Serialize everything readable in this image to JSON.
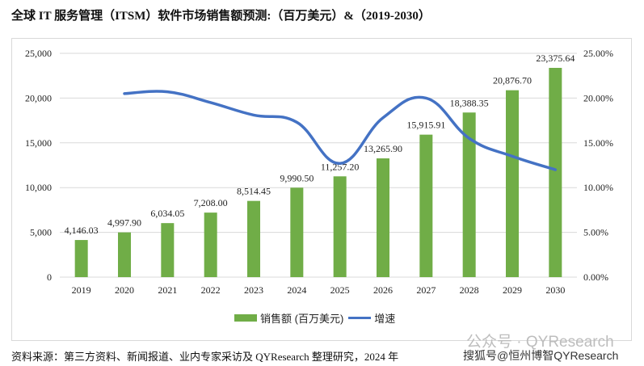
{
  "title": "全球 IT 服务管理（ITSM）软件市场销售额预测:（百万美元）&（2019-2030）",
  "source": "资料来源：第三方资料、新闻报道、业内专家采访及 QYResearch 整理研究，2024 年",
  "watermarks": [
    "公众号 · QYResearch",
    "搜狐号@恒州博智QYResearch"
  ],
  "chart_data": {
    "type": "bar+line",
    "categories": [
      "2019",
      "2020",
      "2021",
      "2022",
      "2023",
      "2024",
      "2025",
      "2026",
      "2027",
      "2028",
      "2029",
      "2030"
    ],
    "series": [
      {
        "name": "销售额 (百万美元)",
        "type": "bar",
        "axis": "left",
        "color": "#70ad47",
        "values": [
          4146.03,
          4997.9,
          6034.05,
          7208.0,
          8514.45,
          9990.5,
          11257.2,
          13265.9,
          15915.91,
          18388.35,
          20876.7,
          23375.64
        ],
        "labels": [
          "4,146.03",
          "4,997.90",
          "6,034.05",
          "7,208.00",
          "8,514.45",
          "9,990.50",
          "11,257.20",
          "13,265.90",
          "15,915.91",
          "18,388.35",
          "20,876.70",
          "23,375.64"
        ]
      },
      {
        "name": "增速",
        "type": "line",
        "axis": "right",
        "color": "#4472c4",
        "values": [
          null,
          20.5,
          20.7,
          19.5,
          18.1,
          17.3,
          12.7,
          17.8,
          20.0,
          15.5,
          13.5,
          12.0
        ]
      }
    ],
    "left_axis": {
      "range": [
        0,
        25000
      ],
      "ticks": [
        "0",
        "5,000",
        "10,000",
        "15,000",
        "20,000",
        "25,000"
      ]
    },
    "right_axis": {
      "range": [
        0,
        25
      ],
      "ticks": [
        "0.00%",
        "5.00%",
        "10.00%",
        "15.00%",
        "20.00%",
        "25.00%"
      ]
    },
    "grid": true,
    "legend": "bottom"
  }
}
